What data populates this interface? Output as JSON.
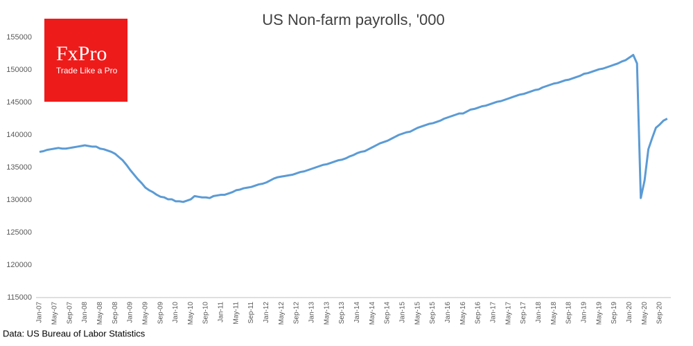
{
  "chart_data": {
    "type": "line",
    "title": "US Non-farm payrolls, '000",
    "logo": {
      "brand": "FxPro",
      "tagline": "Trade Like a Pro"
    },
    "source": "Data: US Bureau of Labor Statistics",
    "color": "#5b9bd5",
    "categories": [
      "Jan-07",
      null,
      null,
      null,
      "May-07",
      null,
      null,
      null,
      "Sep-07",
      null,
      null,
      null,
      "Jan-08",
      null,
      null,
      null,
      "May-08",
      null,
      null,
      null,
      "Sep-08",
      null,
      null,
      null,
      "Jan-09",
      null,
      null,
      null,
      "May-09",
      null,
      null,
      null,
      "Sep-09",
      null,
      null,
      null,
      "Jan-10",
      null,
      null,
      null,
      "May-10",
      null,
      null,
      null,
      "Sep-10",
      null,
      null,
      null,
      "Jan-11",
      null,
      null,
      null,
      "May-11",
      null,
      null,
      null,
      "Sep-11",
      null,
      null,
      null,
      "Jan-12",
      null,
      null,
      null,
      "May-12",
      null,
      null,
      null,
      "Sep-12",
      null,
      null,
      null,
      "Jan-13",
      null,
      null,
      null,
      "May-13",
      null,
      null,
      null,
      "Sep-13",
      null,
      null,
      null,
      "Jan-14",
      null,
      null,
      null,
      "May-14",
      null,
      null,
      null,
      "Sep-14",
      null,
      null,
      null,
      "Jan-15",
      null,
      null,
      null,
      "May-15",
      null,
      null,
      null,
      "Sep-15",
      null,
      null,
      null,
      "Jan-16",
      null,
      null,
      null,
      "May-16",
      null,
      null,
      null,
      "Sep-16",
      null,
      null,
      null,
      "Jan-17",
      null,
      null,
      null,
      "May-17",
      null,
      null,
      null,
      "Sep-17",
      null,
      null,
      null,
      "Jan-18",
      null,
      null,
      null,
      "May-18",
      null,
      null,
      null,
      "Sep-18",
      null,
      null,
      null,
      "Jan-19",
      null,
      null,
      null,
      "May-19",
      null,
      null,
      null,
      "Sep-19",
      null,
      null,
      null,
      "Jan-20",
      null,
      null,
      null,
      "May-20",
      null,
      null,
      null,
      "Sep-20",
      null,
      null
    ],
    "values": [
      137400,
      137500,
      137700,
      137800,
      137900,
      138000,
      137900,
      137900,
      138000,
      138100,
      138200,
      138300,
      138400,
      138300,
      138200,
      138200,
      137900,
      137800,
      137600,
      137400,
      137100,
      136600,
      136100,
      135400,
      134600,
      133900,
      133200,
      132600,
      131900,
      131500,
      131200,
      130800,
      130500,
      130400,
      130100,
      130100,
      129800,
      129800,
      129700,
      129900,
      130100,
      130600,
      130500,
      130400,
      130400,
      130300,
      130600,
      130700,
      130800,
      130800,
      131000,
      131200,
      131500,
      131600,
      131800,
      131900,
      132000,
      132200,
      132400,
      132500,
      132700,
      133000,
      133300,
      133500,
      133600,
      133700,
      133800,
      133900,
      134100,
      134300,
      134400,
      134600,
      134800,
      135000,
      135200,
      135400,
      135500,
      135700,
      135900,
      136100,
      136200,
      136400,
      136700,
      136900,
      137200,
      137400,
      137500,
      137800,
      138100,
      138400,
      138700,
      138900,
      139100,
      139400,
      139700,
      140000,
      140200,
      140400,
      140500,
      140800,
      141100,
      141300,
      141500,
      141700,
      141800,
      142000,
      142200,
      142500,
      142700,
      142900,
      143100,
      143300,
      143300,
      143600,
      143900,
      144000,
      144200,
      144400,
      144500,
      144700,
      144900,
      145100,
      145200,
      145400,
      145600,
      145800,
      146000,
      146200,
      146300,
      146500,
      146700,
      146900,
      147000,
      147300,
      147500,
      147700,
      147900,
      148000,
      148200,
      148400,
      148500,
      148700,
      148900,
      149100,
      149400,
      149500,
      149700,
      149900,
      150100,
      150200,
      150400,
      150600,
      150800,
      151000,
      151300,
      151500,
      151900,
      152300,
      151000,
      130300,
      133000,
      137800,
      139500,
      141100,
      141600,
      142200,
      142500
    ],
    "ylim": [
      115000,
      155000
    ],
    "yticks": [
      115000,
      120000,
      125000,
      130000,
      135000,
      140000,
      145000,
      150000,
      155000
    ],
    "grid": false
  }
}
